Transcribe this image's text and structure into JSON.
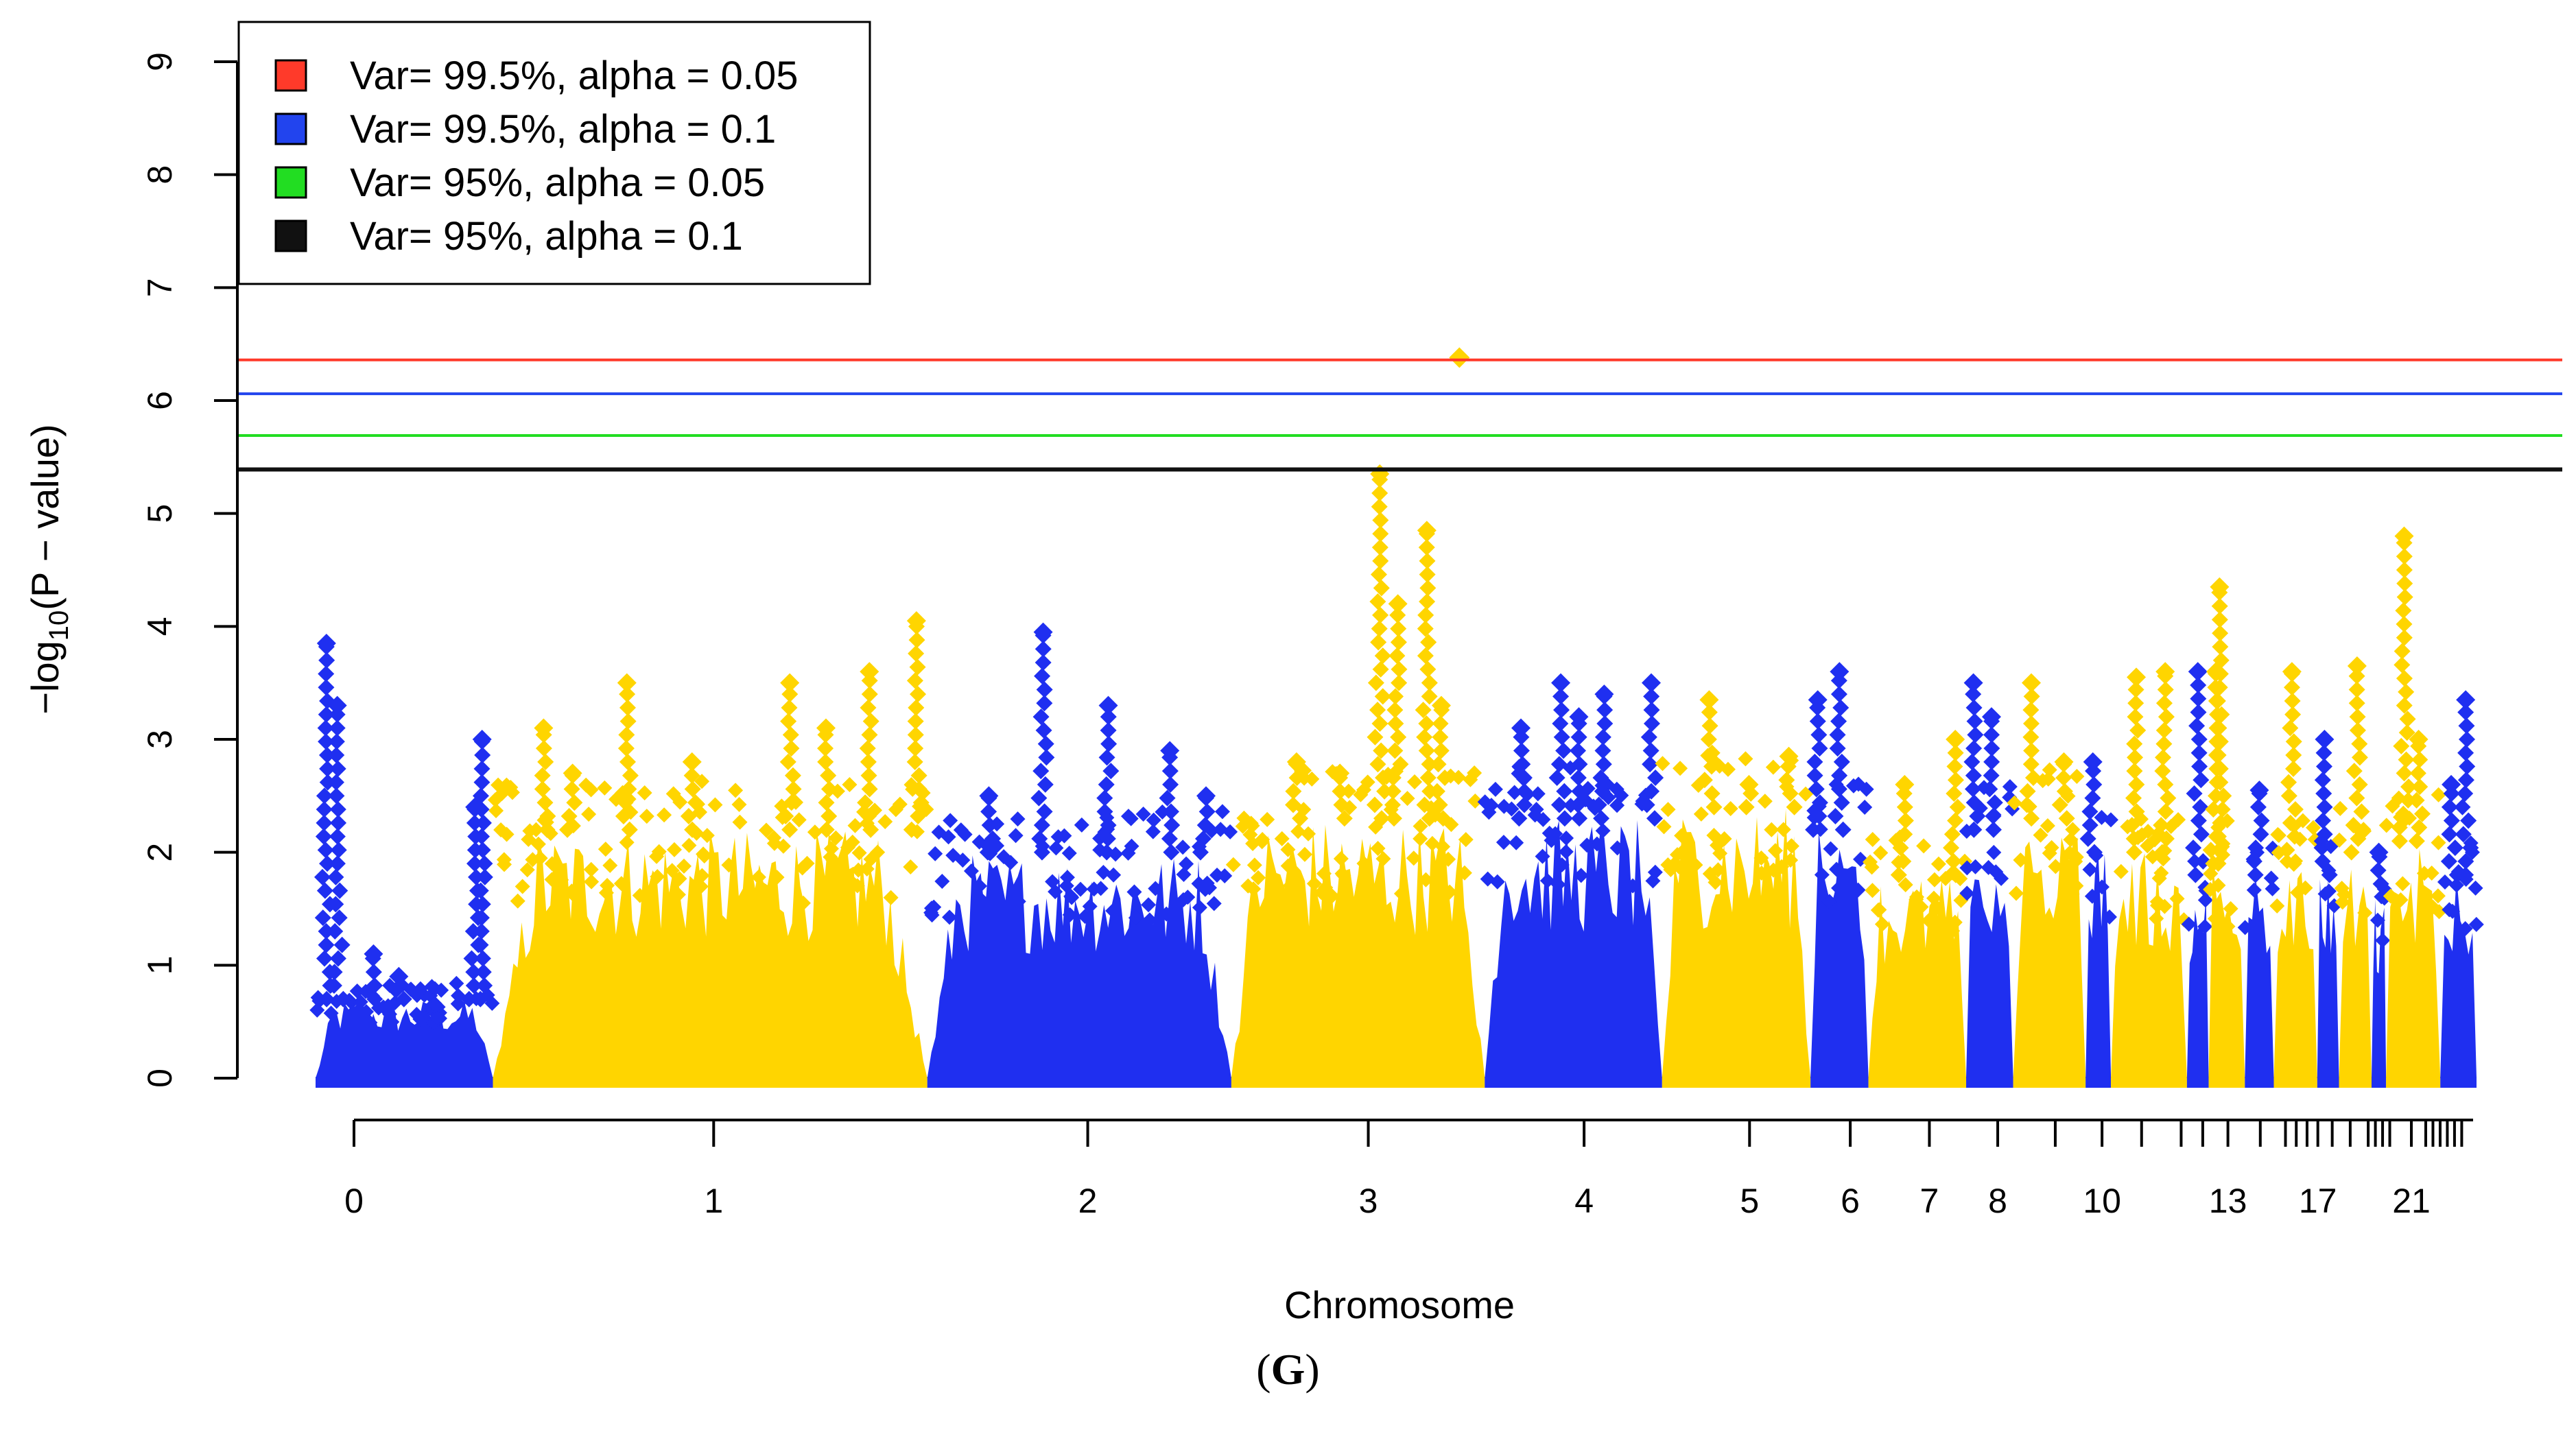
{
  "panel_label": {
    "open": "(",
    "letter": "G",
    "close": ")"
  },
  "colors": {
    "chr_odd": "#1f2ff0",
    "chr_even": "#ffd500",
    "axis": "#000000",
    "thr_red": "#ff3a2a",
    "thr_blue": "#2244ee",
    "thr_green": "#22dd22",
    "thr_black": "#444444"
  },
  "chart_data": {
    "type": "scatter",
    "title": "",
    "xlabel": "Chromosome",
    "ylabel": "−log10(P − value)",
    "ylabel_parts": {
      "pre": "−log",
      "sub": "10",
      "post": "(P − value)"
    },
    "ylim": [
      0,
      9
    ],
    "yticks": [
      0,
      1,
      2,
      3,
      4,
      5,
      6,
      7,
      8,
      9
    ],
    "xlim": [
      -0.35,
      5.75
    ],
    "x_labeled_ticks": [
      {
        "label": "0",
        "x": 0.0
      },
      {
        "label": "1",
        "x": 1.0
      },
      {
        "label": "2",
        "x": 2.04
      },
      {
        "label": "3",
        "x": 2.82
      },
      {
        "label": "4",
        "x": 3.42
      },
      {
        "label": "5",
        "x": 3.88
      },
      {
        "label": "6",
        "x": 4.16
      },
      {
        "label": "7",
        "x": 4.38
      },
      {
        "label": "8",
        "x": 4.57
      },
      {
        "label": "10",
        "x": 4.86
      },
      {
        "label": "13",
        "x": 5.21
      },
      {
        "label": "17",
        "x": 5.46
      },
      {
        "label": "21",
        "x": 5.72
      }
    ],
    "x_minor_ticks": [
      4.73,
      4.97,
      5.08,
      5.14,
      5.3,
      5.37,
      5.4,
      5.43,
      5.5,
      5.55,
      5.6,
      5.62,
      5.64,
      5.66,
      5.76,
      5.78,
      5.8,
      5.82,
      5.84,
      5.86
    ],
    "thresholds": [
      {
        "label": "Var= 99.5%, alpha = 0.05",
        "value": 6.36,
        "color": "#ff3a2a"
      },
      {
        "label": "Var= 99.5%, alpha = 0.1",
        "value": 6.06,
        "color": "#2244ee"
      },
      {
        "label": "Var= 95%, alpha = 0.05",
        "value": 5.69,
        "color": "#22dd22"
      },
      {
        "label": "Var= 95%, alpha = 0.1",
        "value": 5.39,
        "color": "#111111"
      }
    ],
    "legend_position": "top-left",
    "chromosome_bands": [
      {
        "start": -0.11,
        "end": 0.38,
        "color": "blue",
        "base_max": 0.7,
        "peaks": [
          [
            -0.08,
            3.85
          ],
          [
            -0.05,
            3.3
          ],
          [
            0.35,
            3.0
          ],
          [
            0.33,
            2.4
          ],
          [
            0.05,
            1.1
          ],
          [
            0.12,
            0.9
          ]
        ]
      },
      {
        "start": 0.38,
        "end": 1.58,
        "color": "yellow",
        "base_max": 2.2,
        "peaks": [
          [
            0.52,
            3.1
          ],
          [
            0.75,
            3.5
          ],
          [
            0.93,
            2.8
          ],
          [
            1.2,
            3.5
          ],
          [
            1.42,
            3.6
          ],
          [
            1.55,
            4.05
          ],
          [
            1.3,
            3.1
          ],
          [
            0.6,
            2.7
          ]
        ]
      },
      {
        "start": 1.58,
        "end": 2.42,
        "color": "blue",
        "base_max": 2.0,
        "peaks": [
          [
            1.9,
            3.95
          ],
          [
            2.08,
            3.3
          ],
          [
            2.25,
            2.9
          ],
          [
            1.75,
            2.5
          ],
          [
            2.35,
            2.5
          ]
        ]
      },
      {
        "start": 2.42,
        "end": 3.12,
        "color": "yellow",
        "base_max": 2.3,
        "peaks": [
          [
            2.83,
            5.35
          ],
          [
            2.96,
            4.85
          ],
          [
            2.88,
            4.2
          ],
          [
            2.6,
            2.8
          ],
          [
            3.0,
            3.3
          ],
          [
            2.72,
            2.7
          ]
        ]
      },
      {
        "start": 3.12,
        "end": 3.61,
        "color": "blue",
        "base_max": 2.3,
        "peaks": [
          [
            3.33,
            3.5
          ],
          [
            3.45,
            3.4
          ],
          [
            3.58,
            3.5
          ],
          [
            3.22,
            3.1
          ],
          [
            3.38,
            3.2
          ]
        ]
      },
      {
        "start": 3.61,
        "end": 4.02,
        "color": "yellow",
        "base_max": 2.4,
        "peaks": [
          [
            3.74,
            3.35
          ],
          [
            3.96,
            2.85
          ],
          [
            3.85,
            2.6
          ]
        ]
      },
      {
        "start": 4.02,
        "end": 4.18,
        "color": "blue",
        "base_max": 2.2,
        "peaks": [
          [
            4.1,
            3.6
          ],
          [
            4.04,
            3.35
          ]
        ]
      },
      {
        "start": 4.18,
        "end": 4.45,
        "color": "yellow",
        "base_max": 1.8,
        "peaks": [
          [
            4.28,
            2.6
          ],
          [
            4.42,
            3.0
          ]
        ]
      },
      {
        "start": 4.45,
        "end": 4.58,
        "color": "blue",
        "base_max": 2.2,
        "peaks": [
          [
            4.47,
            3.5
          ],
          [
            4.52,
            3.2
          ]
        ]
      },
      {
        "start": 4.58,
        "end": 4.78,
        "color": "yellow",
        "base_max": 2.3,
        "peaks": [
          [
            4.63,
            3.5
          ],
          [
            4.72,
            2.8
          ]
        ]
      },
      {
        "start": 4.78,
        "end": 4.85,
        "color": "blue",
        "base_max": 2.0,
        "peaks": [
          [
            4.8,
            2.8
          ]
        ]
      },
      {
        "start": 4.85,
        "end": 5.06,
        "color": "yellow",
        "base_max": 2.0,
        "peaks": [
          [
            4.92,
            3.55
          ],
          [
            5.0,
            3.6
          ]
        ]
      },
      {
        "start": 5.06,
        "end": 5.12,
        "color": "blue",
        "base_max": 1.8,
        "peaks": [
          [
            5.09,
            3.6
          ]
        ]
      },
      {
        "start": 5.12,
        "end": 5.22,
        "color": "yellow",
        "base_max": 1.9,
        "peaks": [
          [
            5.15,
            4.35
          ],
          [
            5.14,
            3.6
          ]
        ]
      },
      {
        "start": 5.22,
        "end": 5.3,
        "color": "blue",
        "base_max": 1.8,
        "peaks": [
          [
            5.26,
            2.55
          ]
        ]
      },
      {
        "start": 5.3,
        "end": 5.42,
        "color": "yellow",
        "base_max": 1.9,
        "peaks": [
          [
            5.35,
            3.6
          ]
        ]
      },
      {
        "start": 5.42,
        "end": 5.48,
        "color": "blue",
        "base_max": 1.8,
        "peaks": [
          [
            5.44,
            3.0
          ]
        ]
      },
      {
        "start": 5.48,
        "end": 5.57,
        "color": "yellow",
        "base_max": 2.0,
        "peaks": [
          [
            5.53,
            3.65
          ]
        ]
      },
      {
        "start": 5.57,
        "end": 5.61,
        "color": "blue",
        "base_max": 1.6,
        "peaks": [
          [
            5.59,
            2.0
          ]
        ]
      },
      {
        "start": 5.61,
        "end": 5.76,
        "color": "yellow",
        "base_max": 2.1,
        "peaks": [
          [
            5.66,
            4.8
          ],
          [
            5.7,
            3.0
          ]
        ]
      },
      {
        "start": 5.76,
        "end": 5.86,
        "color": "blue",
        "base_max": 1.8,
        "peaks": [
          [
            5.83,
            3.35
          ],
          [
            5.79,
            2.6
          ]
        ]
      }
    ],
    "outliers": [
      {
        "x": 3.05,
        "y": 6.38,
        "color": "yellow"
      }
    ]
  }
}
